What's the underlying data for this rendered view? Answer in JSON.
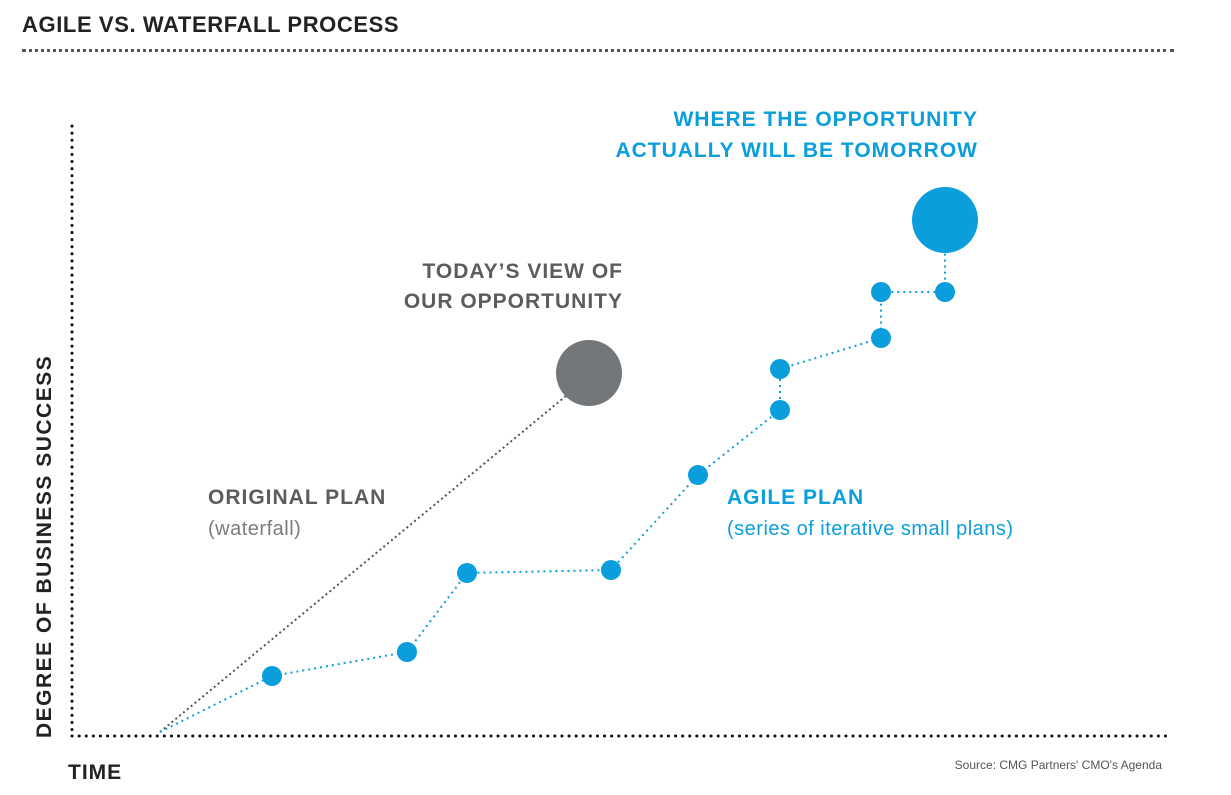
{
  "title": "AGILE VS. WATERFALL PROCESS",
  "y_axis_label": "DEGREE OF BUSINESS SUCCESS",
  "x_axis_label": "TIME",
  "source": "Source: CMG Partners' CMO's Agenda",
  "today_view": {
    "line1": "TODAY’S VIEW OF",
    "line2": "OUR OPPORTUNITY"
  },
  "tomorrow": {
    "line1": "WHERE THE OPPORTUNITY",
    "line2": "ACTUALLY WILL BE TOMORROW"
  },
  "original_plan": {
    "label": "ORIGINAL PLAN",
    "sublabel": "(waterfall)"
  },
  "agile_plan": {
    "label": "AGILE PLAN",
    "sublabel": "(series of iterative small plans)"
  },
  "colors": {
    "agile": "#0a9fdc",
    "waterfall": "#74777a",
    "axis": "#111111",
    "label_gray": "#5a5c5e",
    "sub_gray": "#7a7c7e",
    "title": "#222222"
  },
  "icons": {
    "agile_step": "filled-circle",
    "target": "filled-circle"
  }
}
